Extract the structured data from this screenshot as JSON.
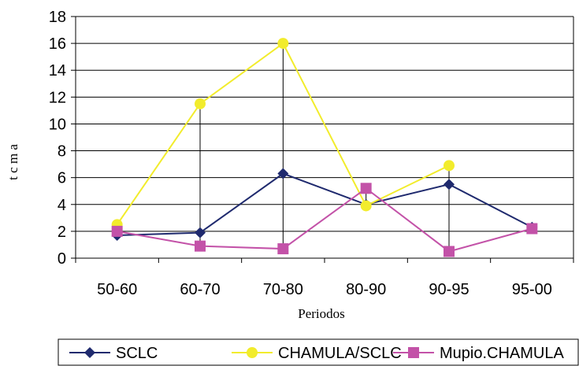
{
  "chart_data": {
    "type": "line",
    "categories": [
      "50-60",
      "60-70",
      "70-80",
      "80-90",
      "90-95",
      "95-00"
    ],
    "xlabel": "Periodos",
    "ylabel": "t c m a",
    "ylim": [
      0,
      18
    ],
    "yticks": [
      "0",
      "2",
      "4",
      "6",
      "8",
      "10",
      "12",
      "14",
      "16",
      "18"
    ],
    "grid": "horizontal",
    "legend_position": "bottom",
    "drop_lines": true,
    "series": [
      {
        "name": "SCLC",
        "values": [
          1.7,
          1.9,
          6.3,
          4.0,
          5.5,
          2.3
        ],
        "color": "#1f2a6e",
        "marker": "diamond"
      },
      {
        "name": "CHAMULA/SCLC",
        "values": [
          2.5,
          11.5,
          16.0,
          3.9,
          6.9,
          null
        ],
        "color": "#f2ec2c",
        "marker": "circle"
      },
      {
        "name": "Mupio.CHAMULA",
        "values": [
          2.0,
          0.9,
          0.7,
          5.2,
          0.5,
          2.2
        ],
        "color": "#c352a8",
        "marker": "square"
      }
    ]
  }
}
